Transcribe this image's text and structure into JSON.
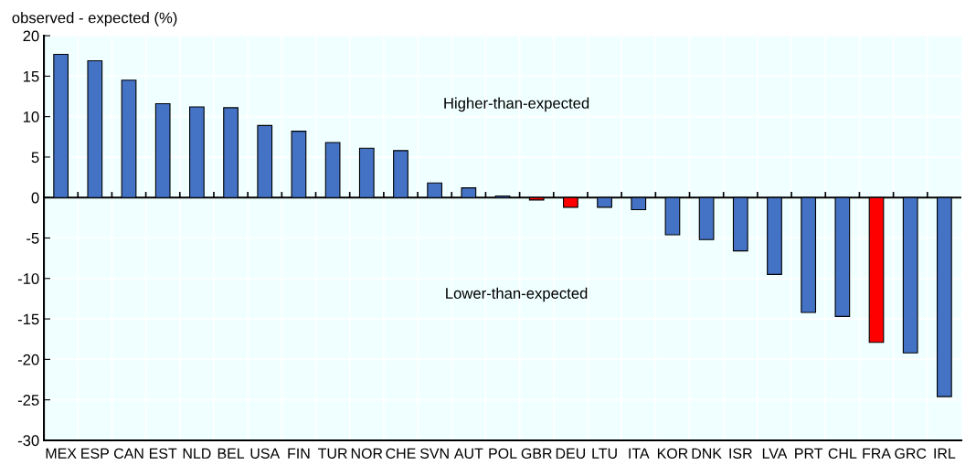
{
  "chart_data": {
    "type": "bar",
    "ylabel": "observed - expected (%)",
    "categories": [
      "MEX",
      "ESP",
      "CAN",
      "EST",
      "NLD",
      "BEL",
      "USA",
      "FIN",
      "TUR",
      "NOR",
      "CHE",
      "SVN",
      "AUT",
      "POL",
      "GBR",
      "DEU",
      "LTU",
      "ITA",
      "KOR",
      "DNK",
      "ISR",
      "LVA",
      "PRT",
      "CHL",
      "FRA",
      "GRC",
      "IRL"
    ],
    "values": [
      17.7,
      16.9,
      14.5,
      11.6,
      11.2,
      11.1,
      8.9,
      8.2,
      6.8,
      6.1,
      5.8,
      1.8,
      1.2,
      0.2,
      -0.3,
      -1.2,
      -1.2,
      -1.5,
      -4.6,
      -5.2,
      -6.6,
      -9.5,
      -14.2,
      -14.7,
      -17.9,
      -19.2,
      -24.6
    ],
    "colors": [
      "#4472c4",
      "#4472c4",
      "#4472c4",
      "#4472c4",
      "#4472c4",
      "#4472c4",
      "#4472c4",
      "#4472c4",
      "#4472c4",
      "#4472c4",
      "#4472c4",
      "#4472c4",
      "#4472c4",
      "#4472c4",
      "#ff0000",
      "#ff0000",
      "#4472c4",
      "#4472c4",
      "#4472c4",
      "#4472c4",
      "#4472c4",
      "#4472c4",
      "#4472c4",
      "#4472c4",
      "#ff0000",
      "#4472c4",
      "#4472c4"
    ],
    "ylim": [
      -30,
      20
    ],
    "yticks": [
      -30,
      -25,
      -20,
      -15,
      -10,
      -5,
      0,
      5,
      10,
      15,
      20
    ],
    "grid": true,
    "annotations": [
      "Higher-than-expected",
      "Lower-than-expected"
    ]
  }
}
